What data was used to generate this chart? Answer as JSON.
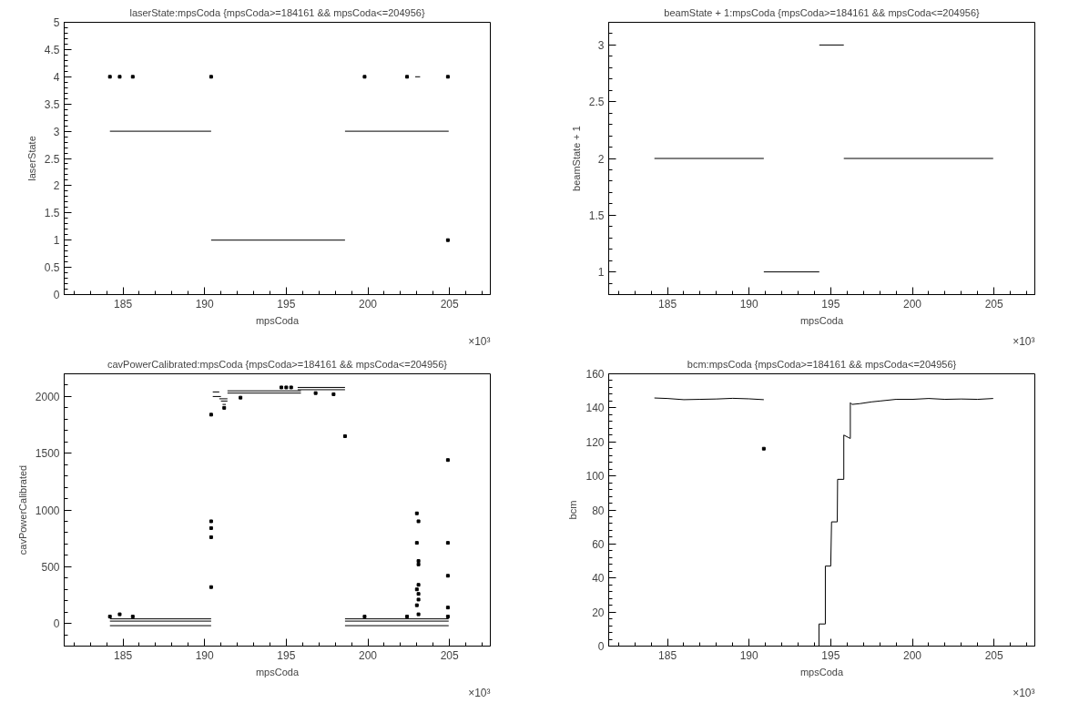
{
  "chart_data": [
    {
      "type": "line",
      "title": "laserState:mpsCoda {mpsCoda>=184161 && mpsCoda<=204956}",
      "xlabel": "mpsCoda",
      "ylabel": "laserState",
      "annotations": [
        "×10³"
      ],
      "xlim": [
        181.4,
        207.5
      ],
      "xticks": [
        185,
        190,
        195,
        200,
        205
      ],
      "ylim": [
        0,
        5
      ],
      "yticks": [
        0,
        0.5,
        1,
        1.5,
        2,
        2.5,
        3,
        3.5,
        4,
        4.5,
        5
      ],
      "series": [
        {
          "color": "#000000",
          "x": [
            184.2,
            190.4,
            null,
            190.4,
            198.6,
            null,
            198.6,
            204.95,
            null,
            202.9,
            203.2
          ],
          "values": [
            3,
            3,
            null,
            1,
            1,
            null,
            3,
            3,
            null,
            4,
            4
          ]
        },
        {
          "type": "scatter",
          "marker": "square",
          "color": "#000000",
          "x": [
            184.2,
            184.8,
            185.6,
            190.4,
            199.8,
            202.4,
            204.9,
            204.9
          ],
          "values": [
            4,
            4,
            4,
            4,
            4,
            4,
            4,
            1
          ]
        }
      ]
    },
    {
      "type": "line",
      "title": "beamState + 1:mpsCoda {mpsCoda>=184161 && mpsCoda<=204956}",
      "xlabel": "mpsCoda",
      "ylabel": "beamState + 1",
      "annotations": [
        "×10³"
      ],
      "xlim": [
        181.4,
        207.5
      ],
      "xticks": [
        185,
        190,
        195,
        200,
        205
      ],
      "ylim": [
        0.8,
        3.2
      ],
      "yticks": [
        1,
        1.5,
        2,
        2.5,
        3
      ],
      "series": [
        {
          "color": "#000000",
          "x": [
            184.2,
            190.9,
            null,
            190.9,
            194.3,
            null,
            194.3,
            195.8,
            null,
            195.8,
            204.95
          ],
          "values": [
            2,
            2,
            null,
            1,
            1,
            null,
            3,
            3,
            null,
            2,
            2
          ]
        }
      ]
    },
    {
      "type": "line",
      "title": "cavPowerCalibrated:mpsCoda {mpsCoda>=184161 && mpsCoda<=204956}",
      "xlabel": "mpsCoda",
      "ylabel": "cavPowerCalibrated",
      "annotations": [
        "×10³"
      ],
      "xlim": [
        181.4,
        207.5
      ],
      "xticks": [
        185,
        190,
        195,
        200,
        205
      ],
      "ylim": [
        -200,
        2200
      ],
      "yticks": [
        0,
        500,
        1000,
        1500,
        2000
      ],
      "series": [
        {
          "color": "#000000",
          "x": [
            184.2,
            190.4,
            null,
            198.6,
            204.95
          ],
          "values": [
            40,
            40,
            null,
            40,
            40
          ]
        },
        {
          "color": "#000000",
          "x": [
            184.2,
            190.4,
            null,
            198.6,
            204.95
          ],
          "values": [
            20,
            20,
            null,
            20,
            20
          ]
        },
        {
          "color": "#000000",
          "x": [
            184.2,
            190.4,
            null,
            198.6,
            204.95
          ],
          "values": [
            -20,
            -20,
            null,
            -20,
            -20
          ]
        },
        {
          "color": "#000000",
          "x": [
            191.4,
            195.9
          ],
          "values": [
            2050,
            2050
          ]
        },
        {
          "color": "#000000",
          "x": [
            191.4,
            195.9
          ],
          "values": [
            2030,
            2030
          ]
        },
        {
          "color": "#000000",
          "x": [
            195.7,
            198.6
          ],
          "values": [
            2080,
            2080
          ]
        },
        {
          "color": "#000000",
          "x": [
            195.7,
            198.6
          ],
          "values": [
            2060,
            2060
          ]
        },
        {
          "color": "#000000",
          "x": [
            190.5,
            190.9,
            null,
            190.5,
            191.0,
            null,
            190.9,
            191.4,
            null,
            191.0,
            191.4,
            null,
            191.1,
            191.3
          ],
          "values": [
            2040,
            2040,
            null,
            2000,
            2000,
            null,
            1980,
            1980,
            null,
            1960,
            1960,
            null,
            1930,
            1930
          ]
        },
        {
          "type": "scatter",
          "marker": "square",
          "color": "#000000",
          "x": [
            184.2,
            184.8,
            185.6,
            190.4,
            190.4,
            190.4,
            190.4,
            190.4,
            191.2,
            192.2,
            194.7,
            195.0,
            195.3,
            196.8,
            197.9,
            198.6,
            199.8,
            202.4,
            203.0,
            203.1,
            203.0,
            203.1,
            203.1,
            203.1,
            203.0,
            203.1,
            203.1,
            203.0,
            203.1,
            204.9,
            204.9,
            204.9,
            204.9,
            204.9
          ],
          "values": [
            60,
            80,
            60,
            1840,
            900,
            840,
            760,
            320,
            1900,
            1990,
            2080,
            2080,
            2080,
            2030,
            2020,
            1650,
            60,
            60,
            970,
            900,
            710,
            550,
            520,
            340,
            300,
            260,
            210,
            160,
            80,
            1440,
            710,
            420,
            140,
            60
          ]
        }
      ]
    },
    {
      "type": "line",
      "title": "bcm:mpsCoda {mpsCoda>=184161 && mpsCoda<=204956}",
      "xlabel": "mpsCoda",
      "ylabel": "bcm",
      "annotations": [
        "×10³"
      ],
      "xlim": [
        181.4,
        207.5
      ],
      "xticks": [
        185,
        190,
        195,
        200,
        205
      ],
      "ylim": [
        0,
        160
      ],
      "yticks": [
        0,
        20,
        40,
        60,
        80,
        100,
        120,
        140,
        160
      ],
      "series": [
        {
          "color": "#000000",
          "x": [
            184.2,
            185.0,
            186.0,
            187.0,
            188.0,
            189.0,
            190.0,
            190.9,
            null,
            194.28,
            194.28,
            194.67,
            194.67,
            195.0,
            195.05,
            195.4,
            195.42,
            195.8,
            195.8,
            196.2,
            196.2,
            196.3,
            196.8,
            197.5,
            198.0,
            199.0,
            200.0,
            201.0,
            202.0,
            203.0,
            204.0,
            204.95
          ],
          "values": [
            145.8,
            145.5,
            144.8,
            145.0,
            145.2,
            145.6,
            145.3,
            144.8,
            null,
            0,
            13,
            13,
            47,
            47,
            73,
            73,
            98,
            98,
            124,
            122,
            143,
            142,
            142.5,
            143.5,
            144,
            145,
            145,
            145.5,
            145,
            145.2,
            145,
            145.5
          ]
        },
        {
          "type": "scatter",
          "marker": "square",
          "color": "#000000",
          "x": [
            190.9
          ],
          "values": [
            116
          ]
        }
      ]
    }
  ]
}
